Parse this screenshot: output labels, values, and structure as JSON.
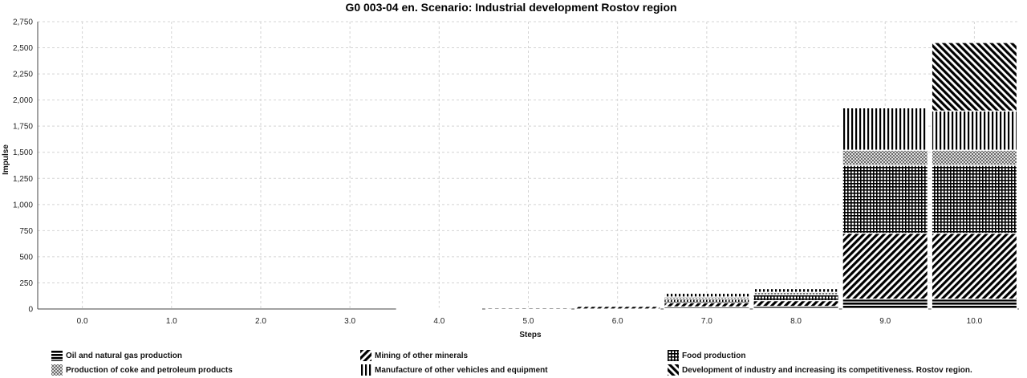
{
  "chart_data": {
    "type": "bar",
    "stacked": true,
    "title": "G0 003-04 en. Scenario: Industrial development Rostov region",
    "xlabel": "Steps",
    "ylabel": "Impulse",
    "ylim": [
      0,
      2750
    ],
    "yticks": [
      "0",
      "250",
      "500",
      "750",
      "1,000",
      "1,250",
      "1,500",
      "1,750",
      "2,000",
      "2,250",
      "2,500",
      "2,750"
    ],
    "ytick_values": [
      0,
      250,
      500,
      750,
      1000,
      1250,
      1500,
      1750,
      2000,
      2250,
      2500,
      2750
    ],
    "categories": [
      "0.0",
      "1.0",
      "2.0",
      "3.0",
      "4.0",
      "5.0",
      "6.0",
      "7.0",
      "8.0",
      "9.0",
      "10.0"
    ],
    "grid": true,
    "legend_position": "bottom",
    "series": [
      {
        "name": "Oil and natural gas production",
        "pattern": "hlines",
        "values": [
          0,
          0,
          0,
          0,
          0,
          0,
          0,
          20,
          25,
          95,
          95
        ]
      },
      {
        "name": "Mining of other minerals",
        "pattern": "diag-fwd",
        "values": [
          0,
          0,
          0,
          0,
          5,
          12,
          25,
          40,
          55,
          630,
          630
        ]
      },
      {
        "name": "Food production",
        "pattern": "grid",
        "values": [
          0,
          0,
          0,
          0,
          0,
          0,
          0,
          35,
          55,
          650,
          650
        ]
      },
      {
        "name": "Production of coke and petroleum products",
        "pattern": "crosshatch",
        "values": [
          0,
          0,
          0,
          0,
          0,
          0,
          0,
          20,
          25,
          145,
          145
        ]
      },
      {
        "name": "Manufacture of other vehicles and equipment",
        "pattern": "vlines",
        "values": [
          0,
          0,
          0,
          0,
          0,
          0,
          0,
          35,
          35,
          405,
          375
        ]
      },
      {
        "name": "Development of industry and increasing its competitiveness. Rostov region.",
        "pattern": "diag-back",
        "values": [
          0,
          0,
          0,
          0,
          0,
          0,
          0,
          0,
          0,
          0,
          655
        ]
      }
    ]
  }
}
